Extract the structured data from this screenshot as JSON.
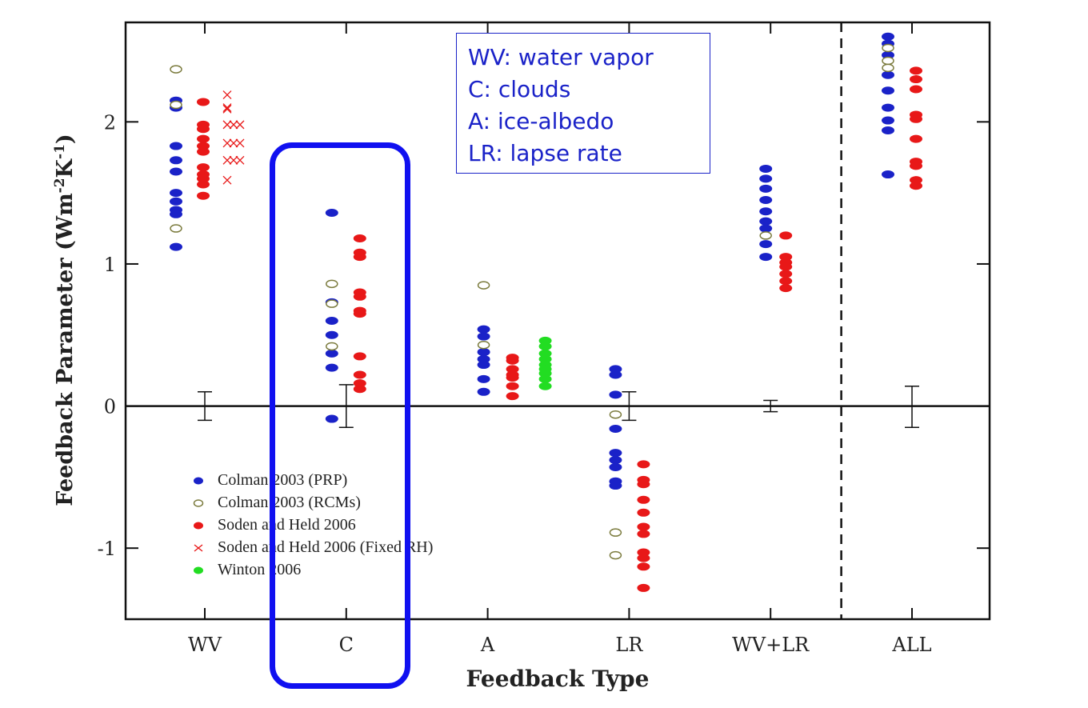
{
  "chart_data": {
    "type": "scatter",
    "xlabel": "Feedback Type",
    "ylabel_main": "Feedback Parameter (Wm",
    "ylabel_sup1": "-2",
    "ylabel_mid": "K",
    "ylabel_sup2": "-1",
    "ylabel_end": ")",
    "categories": [
      "WV",
      "C",
      "A",
      "LR",
      "WV+LR",
      "ALL"
    ],
    "ylim": [
      -1.5,
      2.7
    ],
    "yticks": [
      -1,
      0,
      1,
      2
    ],
    "ytick_labels": [
      "-1",
      "0",
      "1",
      "2"
    ],
    "zero_line": true,
    "divider_after": "WV+LR",
    "series": [
      {
        "name": "Colman 2003 (PRP)",
        "marker": "filled-ellipse",
        "color": "#1a22c8",
        "points": [
          [
            "WV",
            2.15
          ],
          [
            "WV",
            2.1
          ],
          [
            "WV",
            1.83
          ],
          [
            "WV",
            1.73
          ],
          [
            "WV",
            1.65
          ],
          [
            "WV",
            1.5
          ],
          [
            "WV",
            1.44
          ],
          [
            "WV",
            1.38
          ],
          [
            "WV",
            1.35
          ],
          [
            "WV",
            1.12
          ],
          [
            "C",
            1.36
          ],
          [
            "C",
            0.73
          ],
          [
            "C",
            0.6
          ],
          [
            "C",
            0.5
          ],
          [
            "C",
            0.37
          ],
          [
            "C",
            0.27
          ],
          [
            "C",
            -0.09
          ],
          [
            "A",
            0.54
          ],
          [
            "A",
            0.49
          ],
          [
            "A",
            0.38
          ],
          [
            "A",
            0.33
          ],
          [
            "A",
            0.29
          ],
          [
            "A",
            0.19
          ],
          [
            "A",
            0.1
          ],
          [
            "LR",
            0.26
          ],
          [
            "LR",
            0.22
          ],
          [
            "LR",
            0.08
          ],
          [
            "LR",
            -0.16
          ],
          [
            "LR",
            -0.33
          ],
          [
            "LR",
            -0.38
          ],
          [
            "LR",
            -0.43
          ],
          [
            "LR",
            -0.53
          ],
          [
            "LR",
            -0.56
          ],
          [
            "WV+LR",
            1.67
          ],
          [
            "WV+LR",
            1.6
          ],
          [
            "WV+LR",
            1.53
          ],
          [
            "WV+LR",
            1.45
          ],
          [
            "WV+LR",
            1.37
          ],
          [
            "WV+LR",
            1.3
          ],
          [
            "WV+LR",
            1.25
          ],
          [
            "WV+LR",
            1.14
          ],
          [
            "WV+LR",
            1.05
          ],
          [
            "ALL",
            2.6
          ],
          [
            "ALL",
            2.55
          ],
          [
            "ALL",
            2.47
          ],
          [
            "ALL",
            2.33
          ],
          [
            "ALL",
            2.22
          ],
          [
            "ALL",
            2.1
          ],
          [
            "ALL",
            2.01
          ],
          [
            "ALL",
            1.94
          ],
          [
            "ALL",
            1.63
          ]
        ]
      },
      {
        "name": "Colman 2003 (RCMs)",
        "marker": "open-ellipse",
        "color": "#7a7a3c",
        "points": [
          [
            "WV",
            2.37
          ],
          [
            "WV",
            2.12
          ],
          [
            "WV",
            1.25
          ],
          [
            "C",
            0.86
          ],
          [
            "C",
            0.72
          ],
          [
            "C",
            0.42
          ],
          [
            "A",
            0.85
          ],
          [
            "A",
            0.43
          ],
          [
            "LR",
            -0.06
          ],
          [
            "LR",
            -0.89
          ],
          [
            "LR",
            -1.05
          ],
          [
            "WV+LR",
            1.2
          ],
          [
            "ALL",
            2.52
          ],
          [
            "ALL",
            2.43
          ],
          [
            "ALL",
            2.38
          ]
        ]
      },
      {
        "name": "Soden and Held 2006",
        "marker": "filled-ellipse",
        "color": "#e81818",
        "points": [
          [
            "WV",
            2.14
          ],
          [
            "WV",
            1.98
          ],
          [
            "WV",
            1.95
          ],
          [
            "WV",
            1.88
          ],
          [
            "WV",
            1.83
          ],
          [
            "WV",
            1.79
          ],
          [
            "WV",
            1.68
          ],
          [
            "WV",
            1.63
          ],
          [
            "WV",
            1.6
          ],
          [
            "WV",
            1.56
          ],
          [
            "WV",
            1.48
          ],
          [
            "C",
            1.18
          ],
          [
            "C",
            1.08
          ],
          [
            "C",
            1.05
          ],
          [
            "C",
            0.8
          ],
          [
            "C",
            0.77
          ],
          [
            "C",
            0.67
          ],
          [
            "C",
            0.65
          ],
          [
            "C",
            0.35
          ],
          [
            "C",
            0.22
          ],
          [
            "C",
            0.16
          ],
          [
            "C",
            0.12
          ],
          [
            "A",
            0.34
          ],
          [
            "A",
            0.32
          ],
          [
            "A",
            0.26
          ],
          [
            "A",
            0.22
          ],
          [
            "A",
            0.2
          ],
          [
            "A",
            0.14
          ],
          [
            "A",
            0.07
          ],
          [
            "LR",
            -0.41
          ],
          [
            "LR",
            -0.52
          ],
          [
            "LR",
            -0.55
          ],
          [
            "LR",
            -0.66
          ],
          [
            "LR",
            -0.75
          ],
          [
            "LR",
            -0.85
          ],
          [
            "LR",
            -0.9
          ],
          [
            "LR",
            -1.03
          ],
          [
            "LR",
            -1.07
          ],
          [
            "LR",
            -1.13
          ],
          [
            "LR",
            -1.28
          ],
          [
            "WV+LR",
            1.2
          ],
          [
            "WV+LR",
            1.05
          ],
          [
            "WV+LR",
            1.01
          ],
          [
            "WV+LR",
            0.98
          ],
          [
            "WV+LR",
            0.93
          ],
          [
            "WV+LR",
            0.88
          ],
          [
            "WV+LR",
            0.83
          ],
          [
            "ALL",
            2.36
          ],
          [
            "ALL",
            2.3
          ],
          [
            "ALL",
            2.23
          ],
          [
            "ALL",
            2.05
          ],
          [
            "ALL",
            2.02
          ],
          [
            "ALL",
            1.88
          ],
          [
            "ALL",
            1.72
          ],
          [
            "ALL",
            1.69
          ],
          [
            "ALL",
            1.59
          ],
          [
            "ALL",
            1.55
          ]
        ]
      },
      {
        "name": "Soden and Held 2006 (Fixed RH)",
        "marker": "x",
        "color": "#e81818",
        "points": [
          [
            "WV",
            2.19
          ],
          [
            "WV",
            2.1
          ],
          [
            "WV",
            2.09
          ],
          [
            "WV",
            1.98
          ],
          [
            "WV",
            1.98
          ],
          [
            "WV",
            1.98
          ],
          [
            "WV",
            1.85
          ],
          [
            "WV",
            1.85
          ],
          [
            "WV",
            1.85
          ],
          [
            "WV",
            1.73
          ],
          [
            "WV",
            1.73
          ],
          [
            "WV",
            1.73
          ],
          [
            "WV",
            1.59
          ]
        ]
      },
      {
        "name": "Winton 2006",
        "marker": "filled-ellipse",
        "color": "#22dd22",
        "points": [
          [
            "A",
            0.46
          ],
          [
            "A",
            0.42
          ],
          [
            "A",
            0.37
          ],
          [
            "A",
            0.33
          ],
          [
            "A",
            0.29
          ],
          [
            "A",
            0.26
          ],
          [
            "A",
            0.23
          ],
          [
            "A",
            0.19
          ],
          [
            "A",
            0.14
          ]
        ]
      }
    ],
    "error_bars": [
      {
        "category": "WV",
        "low": -0.1,
        "high": 0.1
      },
      {
        "category": "C",
        "low": -0.15,
        "high": 0.15
      },
      {
        "category": "LR",
        "low": -0.1,
        "high": 0.1
      },
      {
        "category": "WV+LR",
        "low": -0.04,
        "high": 0.04
      },
      {
        "category": "ALL",
        "low": -0.15,
        "high": 0.14
      }
    ]
  },
  "info_box": {
    "lines": [
      "WV: water vapor",
      "C: clouds",
      "A: ice-albedo",
      "LR: lapse rate"
    ],
    "color": "#1a22c8"
  },
  "highlight": {
    "category": "C",
    "color": "#1010f0"
  }
}
